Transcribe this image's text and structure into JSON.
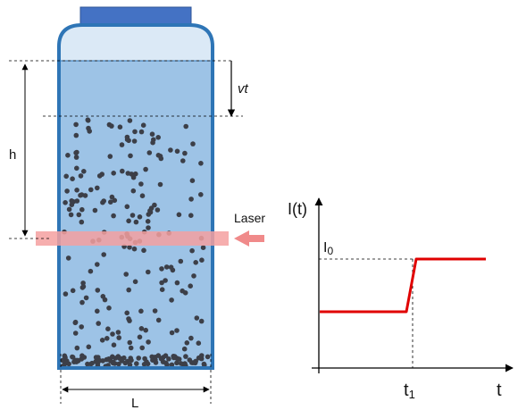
{
  "labels": {
    "vt": "vt",
    "h": "h",
    "L": "L",
    "laser": "Laser",
    "y_axis": "I(t)",
    "i0_main": "I",
    "i0_sub": "0",
    "t1_main": "t",
    "t1_sub": "1",
    "x_axis": "t"
  },
  "colors": {
    "container_fill": "#9dc3e6",
    "container_stroke": "#2e75b6",
    "headspace_fill": "#dbe9f6",
    "cap_fill": "#4472c4",
    "particle": "#3c3f48",
    "laser_band": "#f4a0a0",
    "laser_arrow": "#f08a8a",
    "signal": "#e00000"
  }
}
